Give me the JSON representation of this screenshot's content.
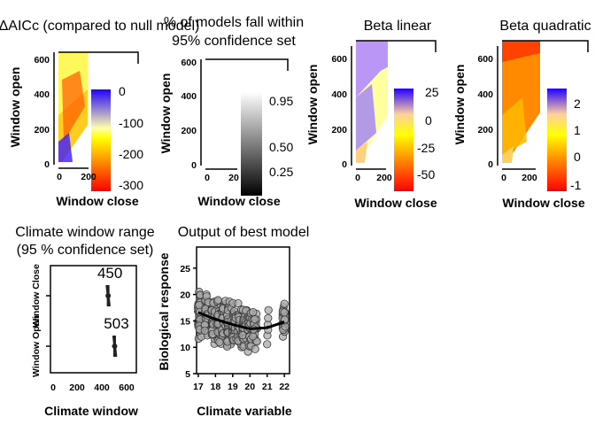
{
  "colors": {
    "heat_low": "#ff0000",
    "heat_mid1": "#ff8800",
    "heat_mid2": "#ffff00",
    "heat_high": "#2200ff",
    "grey_low": "#000000",
    "grey_high": "#ffffff",
    "point_fill": "#a8a8a8",
    "point_edge": "#3a3a3a"
  },
  "chart_data": [
    {
      "type": "heatmap",
      "title": "ΔAICc (compared to null model)",
      "xlabel": "Window close",
      "ylabel": "Window open",
      "xticks": [
        "0",
        "200"
      ],
      "yticks": [
        "0",
        "200",
        "400",
        "600"
      ],
      "xlim": [
        0,
        650
      ],
      "ylim": [
        0,
        650
      ],
      "colorbar": {
        "ticks": [
          "0",
          "-100",
          "-200",
          "-300"
        ],
        "range": [
          -330,
          10
        ]
      },
      "best_window": {
        "window_open": 503,
        "window_close": 450
      }
    },
    {
      "type": "heatmap",
      "title": "% of models fall within 95% confidence set",
      "xlabel": "Window close",
      "ylabel": "Window open",
      "xticks": [
        "0",
        "20"
      ],
      "yticks": [
        "0",
        "200",
        "400",
        "600"
      ],
      "xlim": [
        0,
        650
      ],
      "ylim": [
        0,
        650
      ],
      "colorbar": {
        "ticks": [
          "0.95",
          "0.50",
          "0.25"
        ],
        "range": [
          0,
          1
        ]
      }
    },
    {
      "type": "heatmap",
      "title": "Beta linear",
      "xlabel": "Window close",
      "ylabel": "Window open",
      "xticks": [
        "0",
        "200"
      ],
      "yticks": [
        "0",
        "200",
        "400",
        "600"
      ],
      "xlim": [
        0,
        650
      ],
      "ylim": [
        0,
        650
      ],
      "colorbar": {
        "ticks": [
          "25",
          "0",
          "-25",
          "-50"
        ],
        "range": [
          -60,
          30
        ]
      }
    },
    {
      "type": "heatmap",
      "title": "Beta quadratic",
      "xlabel": "Window close",
      "ylabel": "Window open",
      "xticks": [
        "0",
        "200"
      ],
      "yticks": [
        "0",
        "200",
        "400",
        "600"
      ],
      "xlim": [
        0,
        650
      ],
      "ylim": [
        0,
        650
      ],
      "colorbar": {
        "ticks": [
          "2",
          "1",
          "0",
          "-1"
        ],
        "range": [
          -1.3,
          2.5
        ]
      }
    },
    {
      "type": "scatter",
      "title": "Climate window range (95 % confidence set)",
      "xlabel": "Climate window",
      "ylabel_top": "Window Close",
      "ylabel_bottom": "Window Open",
      "xticks": [
        "0",
        "200",
        "400",
        "600"
      ],
      "xlim": [
        -20,
        680
      ],
      "points": [
        {
          "label": "450",
          "value": 450,
          "low": 440,
          "high": 460
        },
        {
          "label": "503",
          "value": 503,
          "low": 495,
          "high": 513
        }
      ]
    },
    {
      "type": "scatter",
      "title": "Output of best model",
      "xlabel": "Climate variable",
      "ylabel": "Biological response",
      "xticks": [
        "17",
        "18",
        "19",
        "20",
        "21",
        "22"
      ],
      "yticks": [
        "5",
        "10",
        "15",
        "20",
        "25"
      ],
      "xlim": [
        16.9,
        22.3
      ],
      "ylim": [
        5,
        29
      ],
      "fit": [
        [
          17.0,
          16.6
        ],
        [
          18.0,
          15.3
        ],
        [
          19.0,
          14.3
        ],
        [
          20.0,
          13.5
        ],
        [
          21.0,
          13.7
        ],
        [
          22.0,
          14.8
        ]
      ]
    }
  ]
}
